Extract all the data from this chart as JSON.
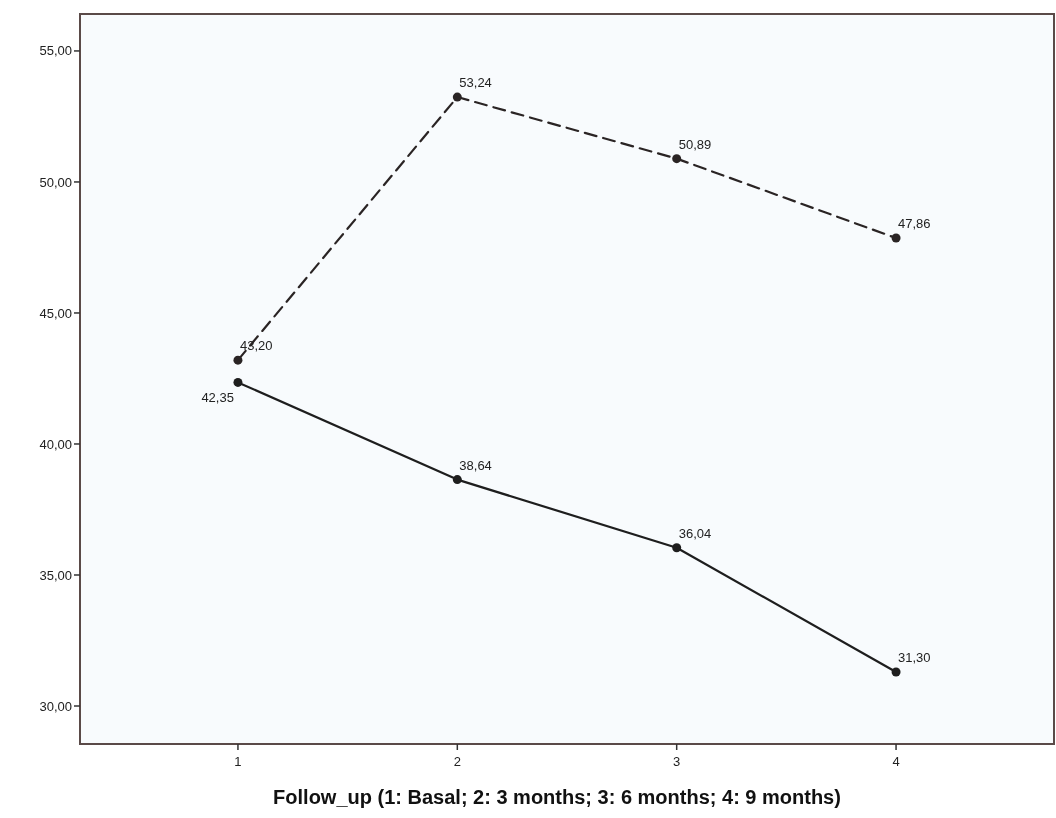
{
  "chart_data": {
    "type": "line",
    "xlabel": "Follow_up (1: Basal; 2: 3 months; 3: 6 months; 4: 9 months)",
    "x": [
      1,
      2,
      3,
      4
    ],
    "xlim": [
      0.28,
      4.72
    ],
    "xticks": [
      1,
      2,
      3,
      4
    ],
    "ylim": [
      28.55,
      56.41
    ],
    "yticks": [
      {
        "value": 30,
        "label": "30,00"
      },
      {
        "value": 35,
        "label": "35,00"
      },
      {
        "value": 40,
        "label": "40,00"
      },
      {
        "value": 45,
        "label": "45,00"
      },
      {
        "value": 50,
        "label": "50,00"
      },
      {
        "value": 55,
        "label": "55,00"
      }
    ],
    "marker": "circle",
    "grid": false,
    "series": [
      {
        "color": "#2a2424",
        "line_style": "dashed",
        "values": [
          43.2,
          53.24,
          50.89,
          47.86
        ],
        "value_labels": [
          "43,20",
          "53,24",
          "50,89",
          "47,86"
        ]
      },
      {
        "color": "#1e1e1e",
        "line_style": "solid",
        "values": [
          42.35,
          38.64,
          36.04,
          31.3
        ],
        "value_labels": [
          "42,35",
          "38,64",
          "36,04",
          "31,30"
        ]
      }
    ]
  }
}
